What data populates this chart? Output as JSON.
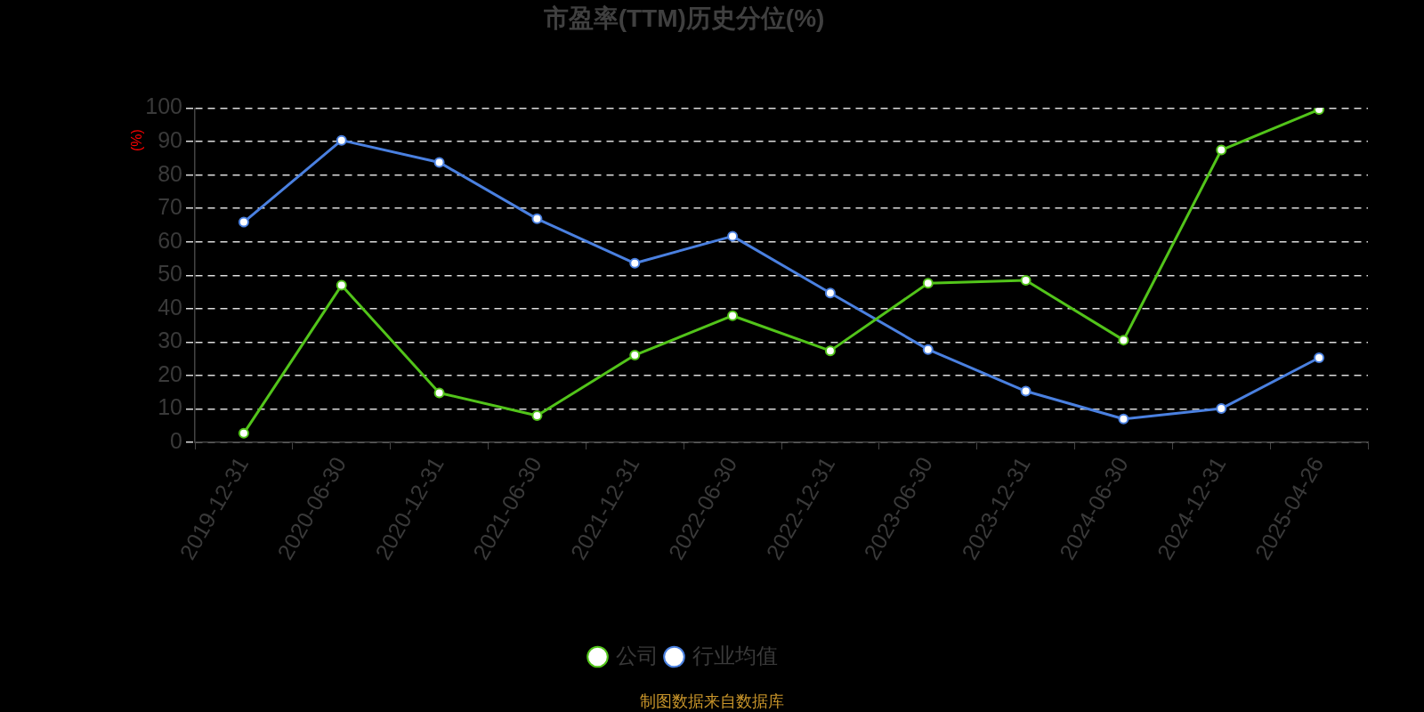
{
  "chart_data": {
    "type": "line",
    "title": "市盈率(TTM)历史分位(%)",
    "ylabel": "(%)",
    "categories": [
      "2019-12-31",
      "2020-06-30",
      "2020-12-31",
      "2021-06-30",
      "2021-12-31",
      "2022-06-30",
      "2022-12-31",
      "2023-06-30",
      "2023-12-31",
      "2024-06-30",
      "2024-12-31",
      "2025-04-26"
    ],
    "series": [
      {
        "name": "公司",
        "color": "#52c41a",
        "values": [
          2.7,
          47.0,
          14.8,
          8.0,
          26.1,
          37.9,
          27.4,
          47.6,
          48.5,
          30.6,
          87.5,
          99.6
        ]
      },
      {
        "name": "行业均值",
        "color": "#4a80e0",
        "values": [
          65.9,
          90.4,
          83.8,
          66.9,
          53.6,
          61.7,
          44.7,
          27.8,
          15.3,
          7.0,
          10.1,
          25.3
        ]
      }
    ],
    "ylim": [
      0,
      100
    ],
    "yticks": [
      0,
      10,
      20,
      30,
      40,
      50,
      60,
      70,
      80,
      90,
      100
    ],
    "grid": "y",
    "legend": "bottom",
    "marker": "circle",
    "line_style": "solid",
    "annotations": [
      "制图数据来自数据库"
    ]
  }
}
